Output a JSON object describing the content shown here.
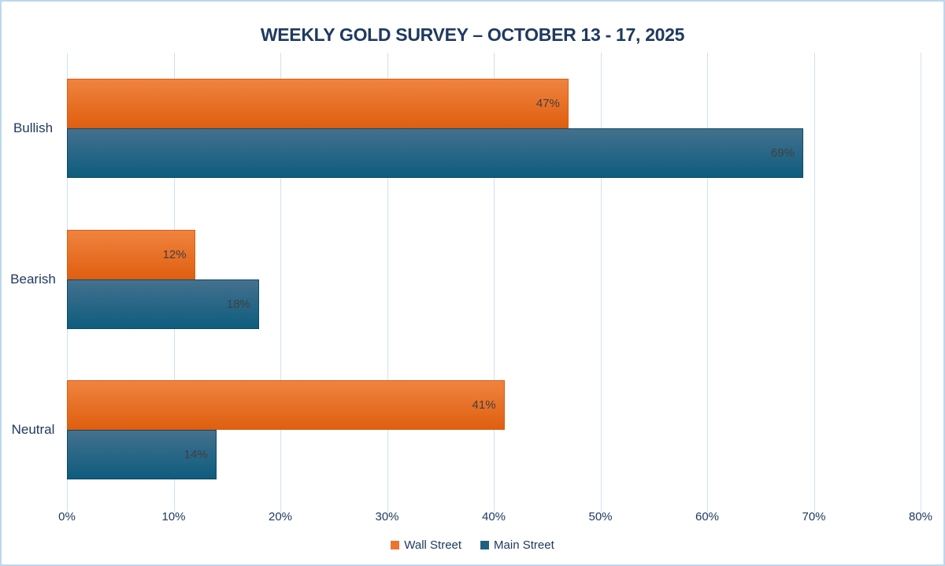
{
  "chart_data": {
    "type": "bar",
    "orientation": "horizontal",
    "title": "WEEKLY GOLD SURVEY – OCTOBER 13 - 17, 2025",
    "categories": [
      "Bullish",
      "Bearish",
      "Neutral"
    ],
    "series": [
      {
        "name": "Wall Street",
        "values": [
          47,
          12,
          41
        ],
        "color_top": "#f0833f",
        "color_bottom": "#df5f10",
        "border_color": "#d95e14",
        "legend_color": "#ec7430"
      },
      {
        "name": "Main Street",
        "values": [
          69,
          18,
          14
        ],
        "color_top": "#44718e",
        "color_bottom": "#0e5c7e",
        "border_color": "#0d4b66",
        "legend_color": "#20607f"
      }
    ],
    "value_suffix": "%",
    "xlabel": "",
    "ylabel": "",
    "xlim": [
      0,
      80
    ],
    "x_ticks": [
      "0%",
      "10%",
      "20%",
      "30%",
      "40%",
      "50%",
      "60%",
      "70%",
      "80%"
    ],
    "grid": true,
    "legend_position": "bottom",
    "data_labels": "inside-end"
  },
  "colors": {
    "title_text": "#1f3a60",
    "axis_text": "#1f3a60",
    "data_label_text": "#404040",
    "gridline": "#cfe0f1",
    "frame_border": "#bdd7ee",
    "background": "#ffffff"
  }
}
